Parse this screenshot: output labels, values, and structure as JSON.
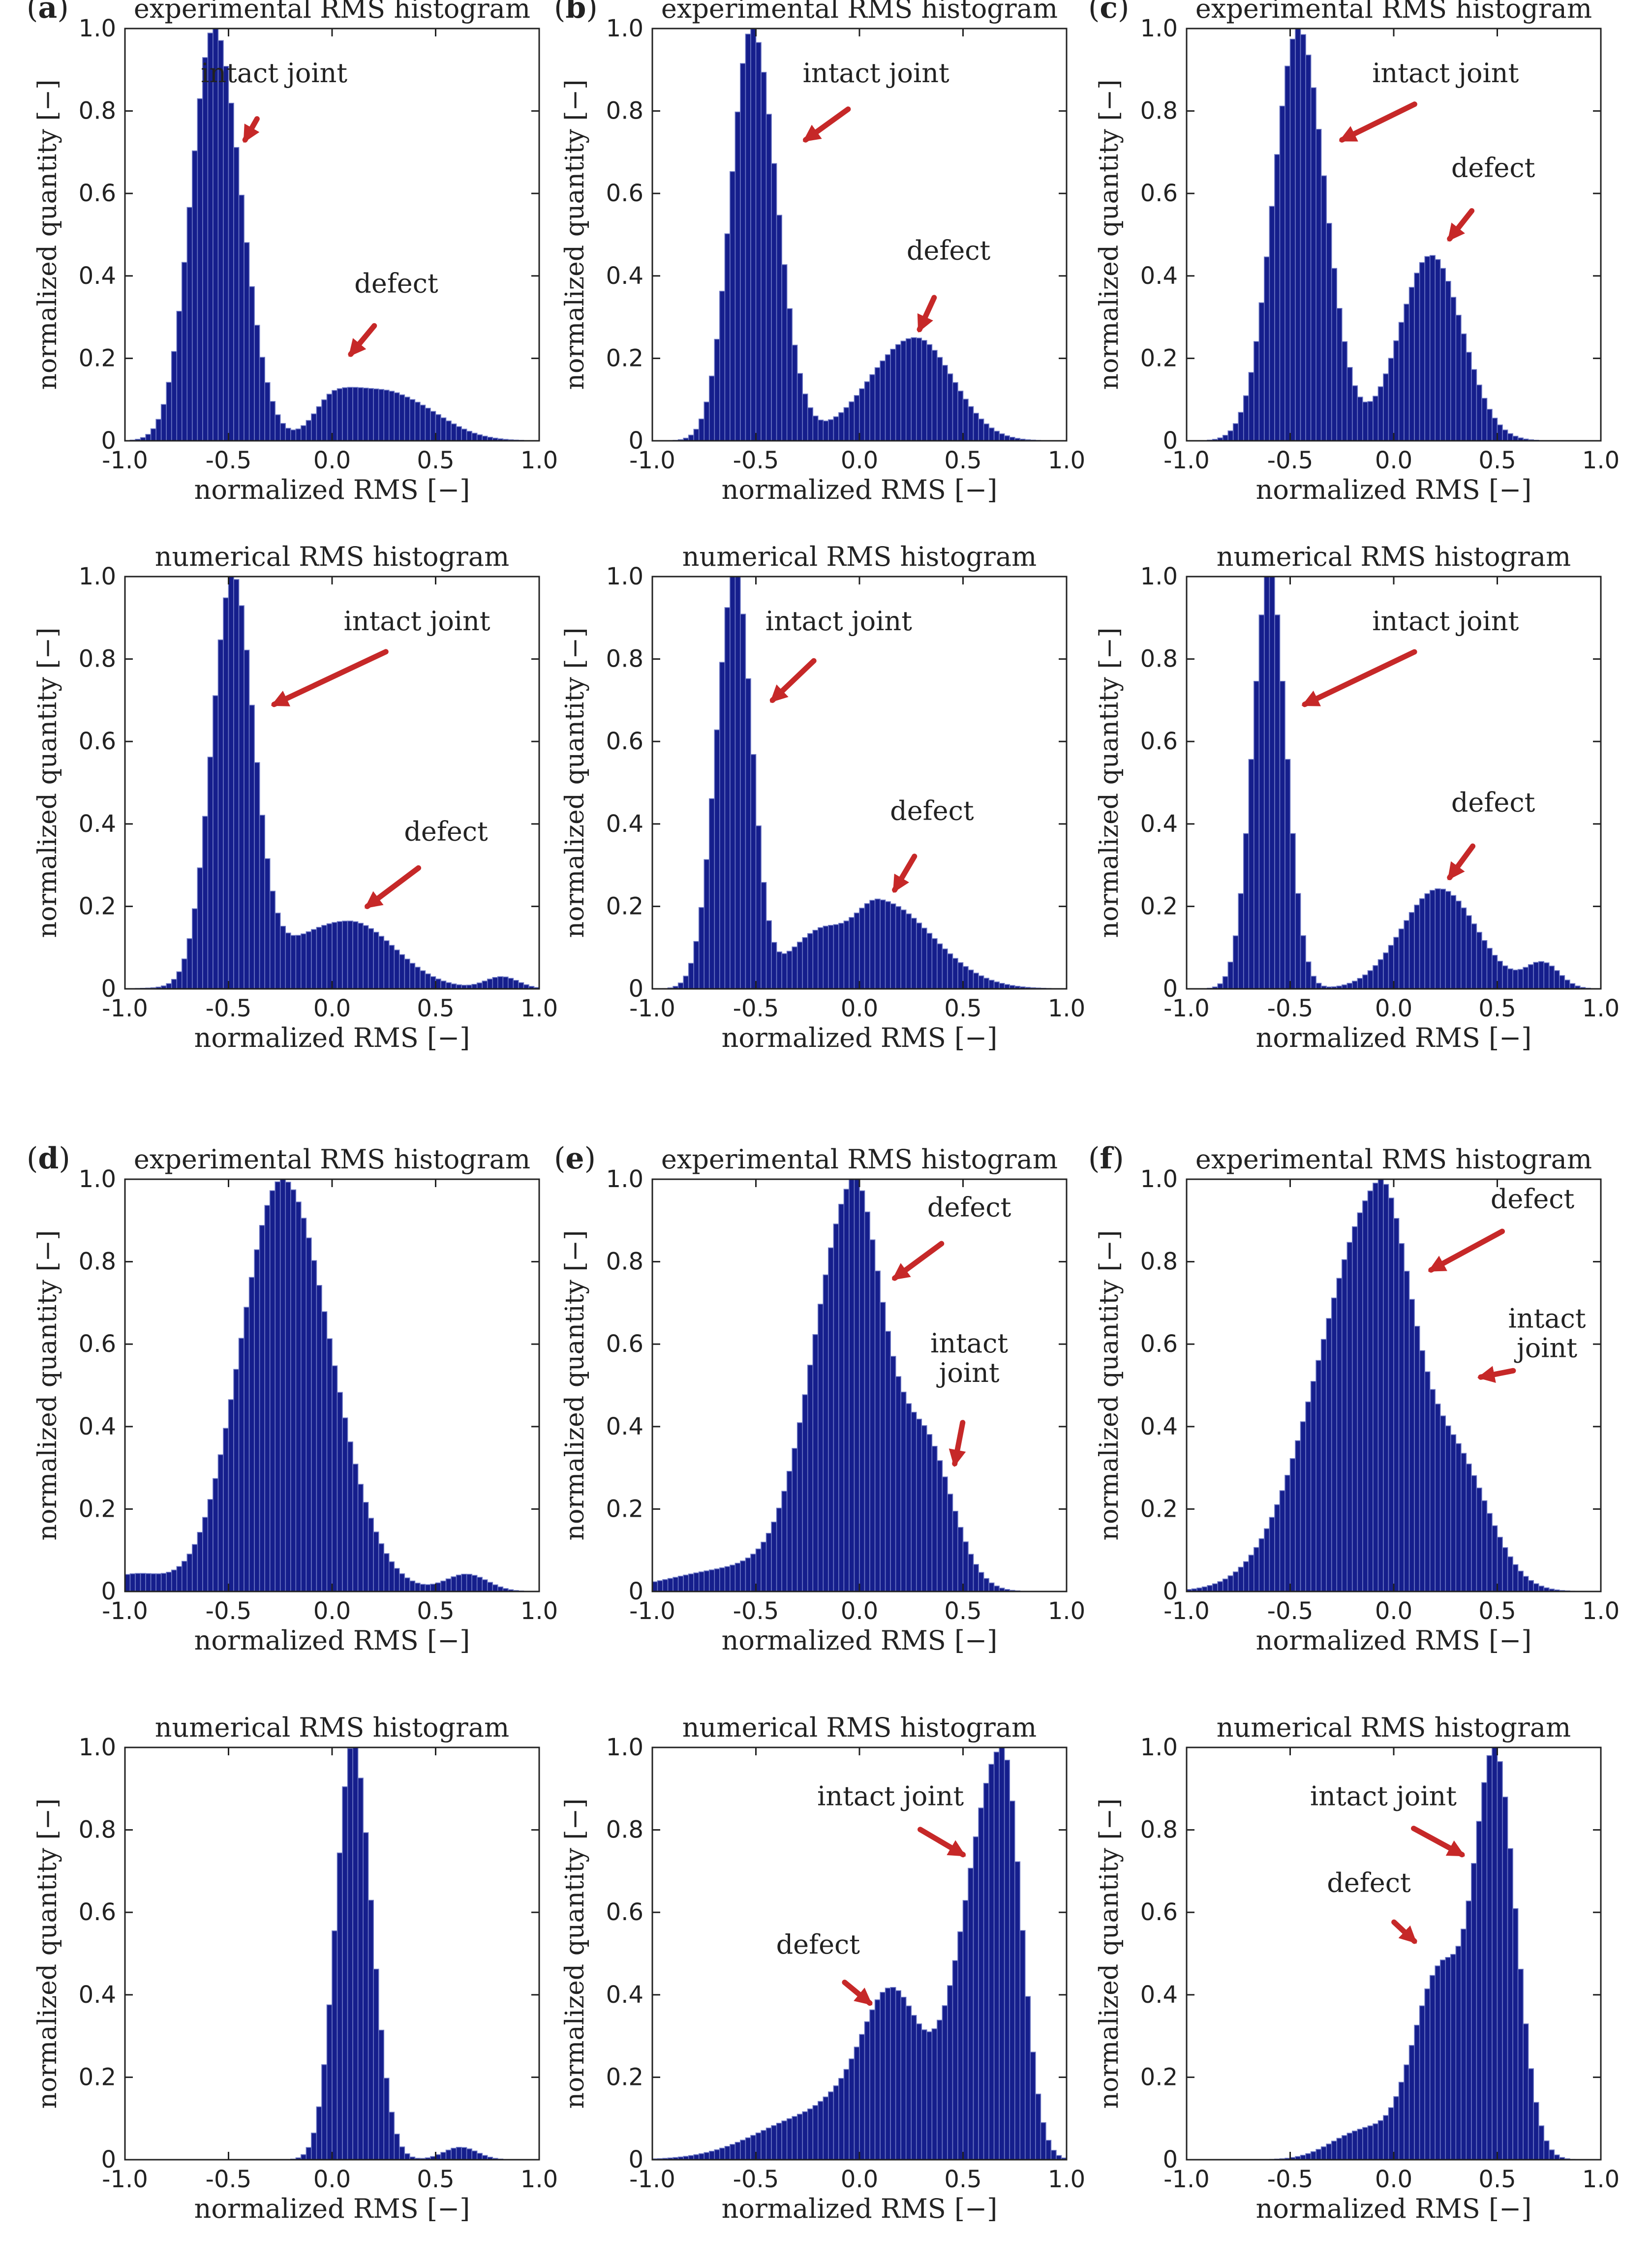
{
  "figure": {
    "axis": {
      "xlabel": "normalized RMS [−]",
      "ylabel": "normalized quantity [−]",
      "xticks": [
        "-1.0",
        "-0.5",
        "0.0",
        "0.5",
        "1.0"
      ],
      "yticks": [
        "0",
        "0.2",
        "0.4",
        "0.6",
        "0.8",
        "1.0"
      ],
      "xlim": [
        -1,
        1
      ],
      "ylim": [
        0,
        1
      ]
    },
    "colors": {
      "bar": "#151e8c",
      "bar_edge": "#6d78c4",
      "arrow": "#c62828"
    }
  },
  "chart_data": [
    {
      "id": "a-exp",
      "type": "bar",
      "panel_label": "a",
      "title": "experimental RMS histogram",
      "peaks": [
        {
          "c": -0.57,
          "h": 1.0,
          "wl": 0.11,
          "wr": 0.13
        },
        {
          "c": 0.02,
          "h": 0.11,
          "wl": 0.1,
          "wr": 0.15
        },
        {
          "c": 0.32,
          "h": 0.1,
          "wl": 0.15,
          "wr": 0.2
        }
      ],
      "annotations": [
        {
          "lines": [
            "intact joint"
          ],
          "tx": -0.28,
          "ty": 0.87,
          "ax": -0.42,
          "ay": 0.73
        },
        {
          "lines": [
            "defect"
          ],
          "tx": 0.31,
          "ty": 0.36,
          "ax": 0.09,
          "ay": 0.21
        }
      ]
    },
    {
      "id": "b-exp",
      "type": "bar",
      "panel_label": "b",
      "title": "experimental RMS histogram",
      "peaks": [
        {
          "c": -0.52,
          "h": 1.0,
          "wl": 0.1,
          "wr": 0.12
        },
        {
          "c": 0.27,
          "h": 0.25,
          "wl": 0.22,
          "wr": 0.18
        }
      ],
      "annotations": [
        {
          "lines": [
            "intact joint"
          ],
          "tx": 0.08,
          "ty": 0.87,
          "ax": -0.26,
          "ay": 0.73
        },
        {
          "lines": [
            "defect"
          ],
          "tx": 0.43,
          "ty": 0.44,
          "ax": 0.29,
          "ay": 0.27
        }
      ]
    },
    {
      "id": "c-exp",
      "type": "bar",
      "panel_label": "c",
      "title": "experimental RMS histogram",
      "peaks": [
        {
          "c": -0.46,
          "h": 1.0,
          "wl": 0.12,
          "wr": 0.13
        },
        {
          "c": 0.18,
          "h": 0.45,
          "wl": 0.15,
          "wr": 0.15
        }
      ],
      "annotations": [
        {
          "lines": [
            "intact joint"
          ],
          "tx": 0.25,
          "ty": 0.87,
          "ax": -0.25,
          "ay": 0.73
        },
        {
          "lines": [
            "defect"
          ],
          "tx": 0.48,
          "ty": 0.64,
          "ax": 0.27,
          "ay": 0.49
        }
      ]
    },
    {
      "id": "a-num",
      "type": "bar",
      "panel_label": "",
      "title": "numerical RMS histogram",
      "peaks": [
        {
          "c": -0.48,
          "h": 1.0,
          "wl": 0.1,
          "wr": 0.1
        },
        {
          "c": 0.08,
          "h": 0.17,
          "wl": 0.32,
          "wr": 0.22
        },
        {
          "c": 0.82,
          "h": 0.03,
          "wl": 0.08,
          "wr": 0.08
        }
      ],
      "annotations": [
        {
          "lines": [
            "intact joint"
          ],
          "tx": 0.41,
          "ty": 0.87,
          "ax": -0.28,
          "ay": 0.69
        },
        {
          "lines": [
            "defect"
          ],
          "tx": 0.55,
          "ty": 0.36,
          "ax": 0.17,
          "ay": 0.2
        }
      ]
    },
    {
      "id": "b-num",
      "type": "bar",
      "panel_label": "",
      "title": "numerical RMS histogram",
      "peaks": [
        {
          "c": -0.6,
          "h": 1.0,
          "wl": 0.09,
          "wr": 0.08
        },
        {
          "c": -0.2,
          "h": 0.13,
          "wl": 0.15,
          "wr": 0.12
        },
        {
          "c": 0.1,
          "h": 0.21,
          "wl": 0.13,
          "wr": 0.25
        }
      ],
      "annotations": [
        {
          "lines": [
            "intact joint"
          ],
          "tx": -0.1,
          "ty": 0.87,
          "ax": -0.42,
          "ay": 0.7
        },
        {
          "lines": [
            "defect"
          ],
          "tx": 0.35,
          "ty": 0.41,
          "ax": 0.17,
          "ay": 0.24
        }
      ]
    },
    {
      "id": "c-num",
      "type": "bar",
      "panel_label": "",
      "title": "numerical RMS histogram",
      "peaks": [
        {
          "c": -0.6,
          "h": 1.0,
          "wl": 0.08,
          "wr": 0.08
        },
        {
          "c": 0.22,
          "h": 0.24,
          "wl": 0.18,
          "wr": 0.18
        },
        {
          "c": 0.72,
          "h": 0.06,
          "wl": 0.08,
          "wr": 0.08
        }
      ],
      "annotations": [
        {
          "lines": [
            "intact joint"
          ],
          "tx": 0.25,
          "ty": 0.87,
          "ax": -0.43,
          "ay": 0.69
        },
        {
          "lines": [
            "defect"
          ],
          "tx": 0.48,
          "ty": 0.43,
          "ax": 0.27,
          "ay": 0.27
        }
      ]
    },
    {
      "id": "d-exp",
      "type": "bar",
      "panel_label": "d",
      "title": "experimental RMS histogram",
      "peaks": [
        {
          "c": -0.24,
          "h": 0.96,
          "wl": 0.2,
          "wr": 0.23
        },
        {
          "c": -0.95,
          "h": 0.04,
          "wl": 0.15,
          "wr": 0.15
        },
        {
          "c": 0.65,
          "h": 0.04,
          "wl": 0.1,
          "wr": 0.1
        }
      ],
      "annotations": []
    },
    {
      "id": "e-exp",
      "type": "bar",
      "panel_label": "e",
      "title": "experimental RMS histogram",
      "peaks": [
        {
          "c": -0.04,
          "h": 1.0,
          "wl": 0.19,
          "wr": 0.13
        },
        {
          "c": 0.3,
          "h": 0.42,
          "wl": 0.2,
          "wr": 0.14
        },
        {
          "c": -0.6,
          "h": 0.06,
          "wl": 0.3,
          "wr": 0.2
        }
      ],
      "annotations": [
        {
          "lines": [
            "defect"
          ],
          "tx": 0.53,
          "ty": 0.91,
          "ax": 0.17,
          "ay": 0.76
        },
        {
          "lines": [
            "intact",
            "joint"
          ],
          "tx": 0.53,
          "ty": 0.58,
          "ax": 0.46,
          "ay": 0.31
        }
      ]
    },
    {
      "id": "f-exp",
      "type": "bar",
      "panel_label": "f",
      "title": "experimental RMS histogram",
      "peaks": [
        {
          "c": -0.08,
          "h": 1.0,
          "wl": 0.28,
          "wr": 0.15
        },
        {
          "c": 0.28,
          "h": 0.36,
          "wl": 0.2,
          "wr": 0.17
        }
      ],
      "annotations": [
        {
          "lines": [
            "defect"
          ],
          "tx": 0.67,
          "ty": 0.93,
          "ax": 0.18,
          "ay": 0.78
        },
        {
          "lines": [
            "intact",
            "joint"
          ],
          "tx": 0.74,
          "ty": 0.64,
          "ax": 0.42,
          "ay": 0.52
        }
      ]
    },
    {
      "id": "d-num",
      "type": "bar",
      "panel_label": "",
      "title": "numerical RMS histogram",
      "peaks": [
        {
          "c": 0.1,
          "h": 1.0,
          "wl": 0.08,
          "wr": 0.09
        },
        {
          "c": 0.62,
          "h": 0.03,
          "wl": 0.08,
          "wr": 0.08
        }
      ],
      "annotations": []
    },
    {
      "id": "e-num",
      "type": "bar",
      "panel_label": "",
      "title": "numerical RMS histogram",
      "peaks": [
        {
          "c": 0.69,
          "h": 1.0,
          "wl": 0.18,
          "wr": 0.09
        },
        {
          "c": 0.15,
          "h": 0.4,
          "wl": 0.15,
          "wr": 0.14
        },
        {
          "c": -0.2,
          "h": 0.11,
          "wl": 0.28,
          "wr": 0.15
        }
      ],
      "annotations": [
        {
          "lines": [
            "intact joint"
          ],
          "tx": 0.15,
          "ty": 0.86,
          "ax": 0.5,
          "ay": 0.74
        },
        {
          "lines": [
            "defect"
          ],
          "tx": -0.2,
          "ty": 0.5,
          "ax": 0.05,
          "ay": 0.38
        }
      ]
    },
    {
      "id": "f-num",
      "type": "bar",
      "panel_label": "",
      "title": "numerical RMS histogram",
      "peaks": [
        {
          "c": 0.49,
          "h": 1.0,
          "wl": 0.1,
          "wr": 0.1
        },
        {
          "c": 0.22,
          "h": 0.46,
          "wl": 0.13,
          "wr": 0.11
        },
        {
          "c": -0.15,
          "h": 0.07,
          "wl": 0.15,
          "wr": 0.12
        }
      ],
      "annotations": [
        {
          "lines": [
            "intact joint"
          ],
          "tx": -0.05,
          "ty": 0.86,
          "ax": 0.33,
          "ay": 0.74
        },
        {
          "lines": [
            "defect"
          ],
          "tx": -0.12,
          "ty": 0.65,
          "ax": 0.1,
          "ay": 0.53
        }
      ]
    }
  ]
}
